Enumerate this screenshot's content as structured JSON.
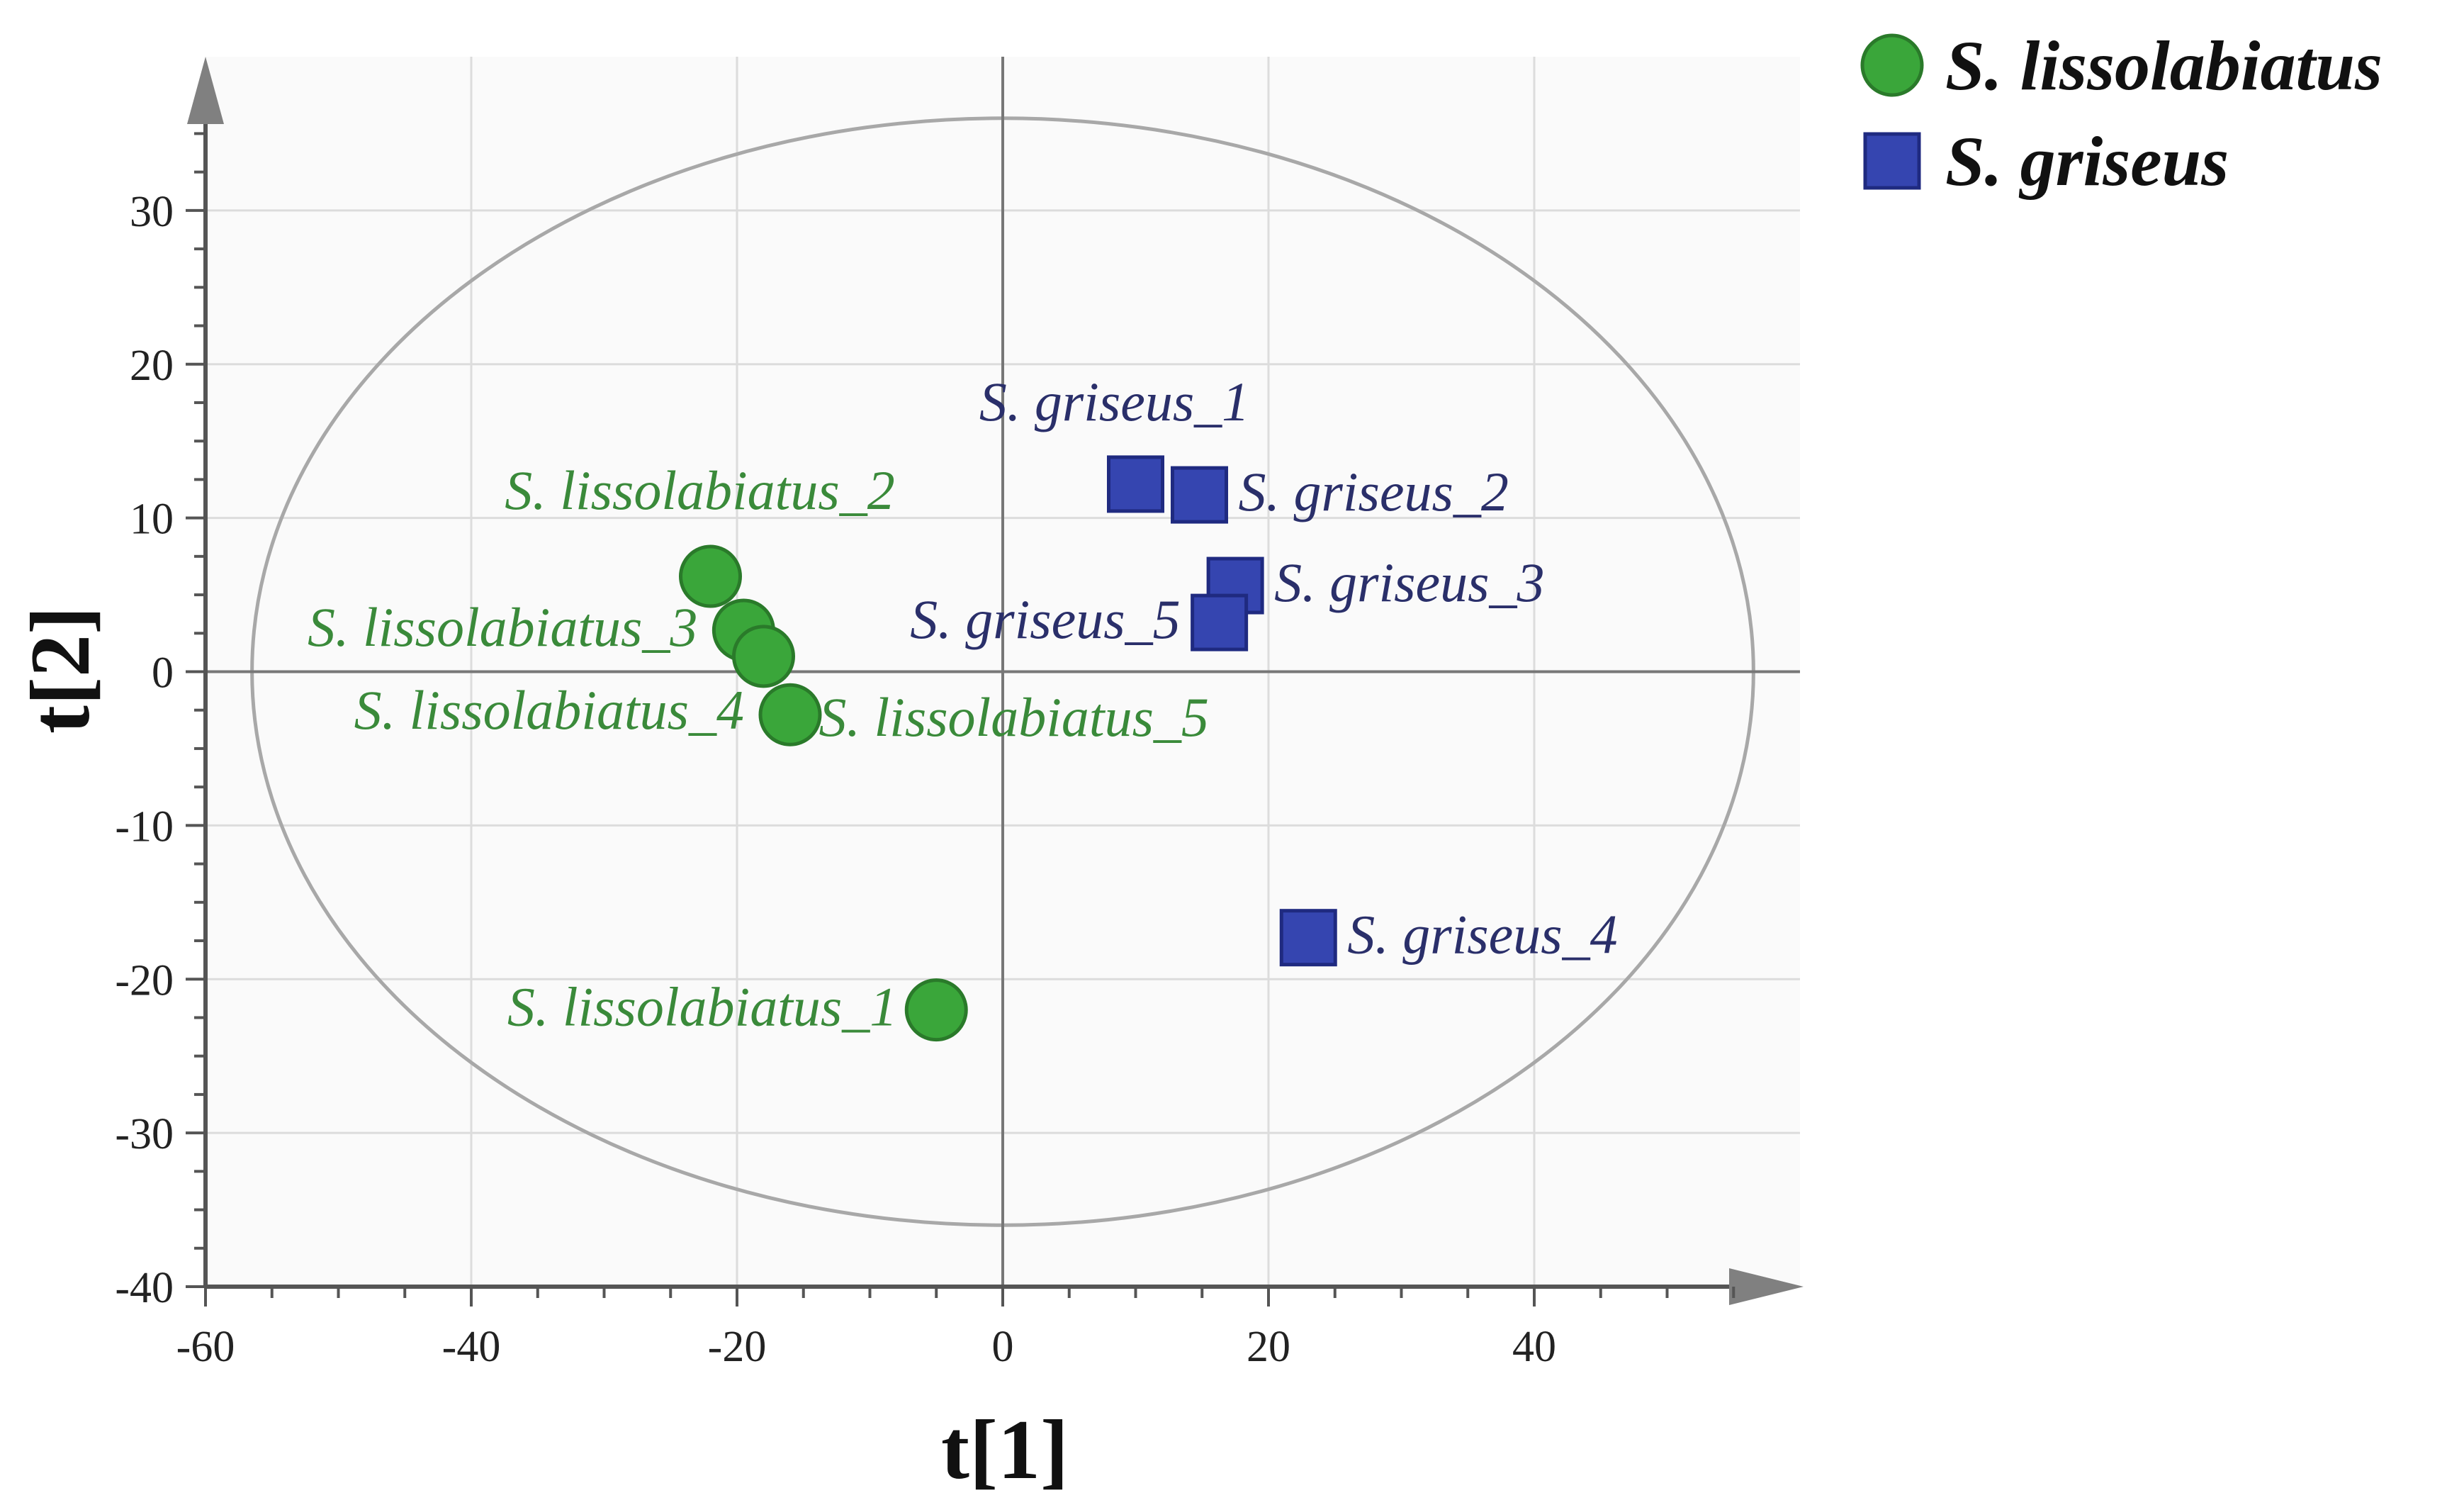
{
  "chart_data": {
    "type": "scatter",
    "xlabel": "t[1]",
    "ylabel": "t[2]",
    "xlim": [
      -60,
      60
    ],
    "ylim": [
      -40,
      40
    ],
    "xticks": [
      -60,
      -40,
      -20,
      0,
      20,
      40
    ],
    "yticks": [
      -40,
      -30,
      -20,
      -10,
      0,
      10,
      20,
      30
    ],
    "grid": true,
    "legend_position": "top-right",
    "ellipse": {
      "cx": 0,
      "cy": 0,
      "rx": 56.5,
      "ry": 36
    },
    "series": [
      {
        "name": "S. lissolabiatus",
        "marker": "circle",
        "color": "#3aa63a",
        "edge_color": "#2a7a2a",
        "points": [
          {
            "label": "S. lissolabiatus_1",
            "x": -5,
            "y": -22
          },
          {
            "label": "S. lissolabiatus_2",
            "x": -22,
            "y": 6.2
          },
          {
            "label": "S. lissolabiatus_3",
            "x": -19.5,
            "y": 2.7
          },
          {
            "label": "S. lissolabiatus_4",
            "x": -16,
            "y": -2.8
          },
          {
            "label": "S. lissolabiatus_5",
            "x": -18,
            "y": 1
          }
        ]
      },
      {
        "name": "S. griseus",
        "marker": "square",
        "color": "#3545b0",
        "edge_color": "#1f2a80",
        "points": [
          {
            "label": "S. griseus_1",
            "x": 10,
            "y": 12.2
          },
          {
            "label": "S. griseus_2",
            "x": 14.8,
            "y": 11.5
          },
          {
            "label": "S. griseus_3",
            "x": 17.5,
            "y": 5.6
          },
          {
            "label": "S. griseus_4",
            "x": 23,
            "y": -17.3
          },
          {
            "label": "S. griseus_5",
            "x": 16.3,
            "y": 3.2
          }
        ]
      }
    ]
  }
}
